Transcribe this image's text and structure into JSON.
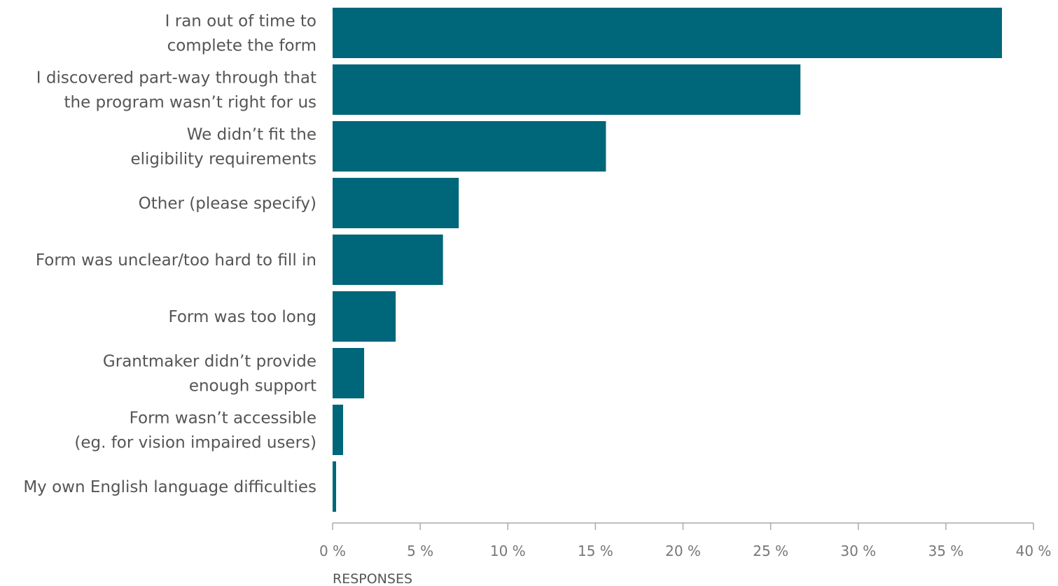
{
  "chart_data": {
    "type": "bar",
    "orientation": "horizontal",
    "bar_color": "#00667a",
    "categories": [
      [
        "I ran out of time to",
        "complete the form"
      ],
      [
        "I discovered part-way through that",
        "the program wasn’t right for us"
      ],
      [
        "We didn’t fit the",
        "eligibility requirements"
      ],
      [
        "Other (please specify)"
      ],
      [
        "Form was unclear/too hard to fill in"
      ],
      [
        "Form was too long"
      ],
      [
        "Grantmaker didn’t provide",
        "enough support"
      ],
      [
        "Form wasn’t accessible",
        "(eg. for vision impaired users)"
      ],
      [
        "My own English language difficulties"
      ]
    ],
    "values": [
      38.2,
      26.7,
      15.6,
      7.2,
      6.3,
      3.6,
      1.8,
      0.6,
      0.2
    ],
    "xlim": [
      0,
      40
    ],
    "x_ticks": [
      0,
      5,
      10,
      15,
      20,
      25,
      30,
      35,
      40
    ],
    "x_tick_labels": [
      "0 %",
      "5 %",
      "10 %",
      "15 %",
      "20 %",
      "25 %",
      "30 %",
      "35 %",
      "40 %"
    ],
    "xlabel": "RESPONSES",
    "grid": false
  }
}
